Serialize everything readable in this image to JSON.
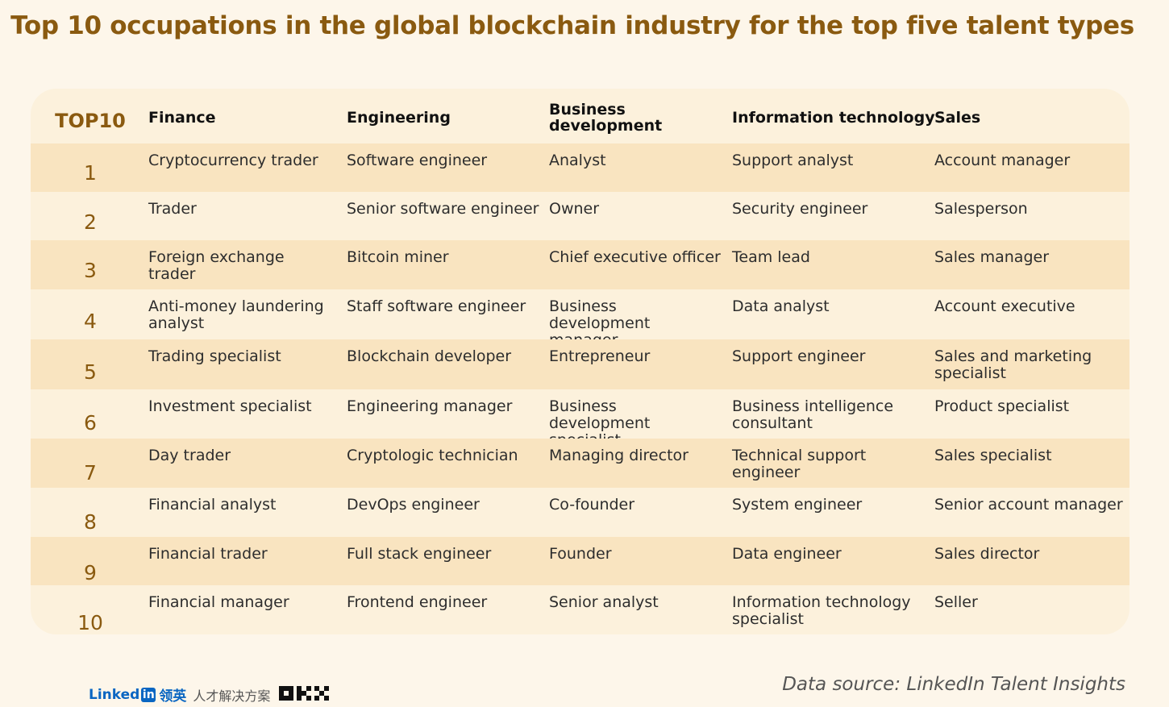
{
  "title": "Top 10 occupations in the global blockchain industry for the top five talent types",
  "table": {
    "corner_label": "TOP10",
    "columns": [
      "Finance",
      "Engineering",
      "Business development",
      "Information technology",
      "Sales"
    ],
    "rows": [
      {
        "rank": "1",
        "cells": [
          "Cryptocurrency trader",
          "Software engineer",
          "Analyst",
          "Support analyst",
          "Account manager"
        ]
      },
      {
        "rank": "2",
        "cells": [
          "Trader",
          "Senior software engineer",
          "Owner",
          "Security engineer",
          "Salesperson"
        ]
      },
      {
        "rank": "3",
        "cells": [
          "Foreign exchange trader",
          "Bitcoin miner",
          "Chief executive officer",
          "Team lead",
          "Sales manager"
        ]
      },
      {
        "rank": "4",
        "cells": [
          "Anti-money laundering analyst",
          "Staff software engineer",
          "Business development manager",
          "Data analyst",
          "Account executive"
        ]
      },
      {
        "rank": "5",
        "cells": [
          "Trading specialist",
          "Blockchain developer",
          "Entrepreneur",
          "Support engineer",
          "Sales and marketing specialist"
        ]
      },
      {
        "rank": "6",
        "cells": [
          "Investment specialist",
          "Engineering manager",
          "Business development specialist",
          "Business intelligence consultant",
          "Product specialist"
        ]
      },
      {
        "rank": "7",
        "cells": [
          "Day trader",
          "Cryptologic technician",
          "Managing director",
          "Technical support engineer",
          "Sales specialist"
        ]
      },
      {
        "rank": "8",
        "cells": [
          "Financial analyst",
          "DevOps engineer",
          "Co-founder",
          "System engineer",
          "Senior account manager"
        ]
      },
      {
        "rank": "9",
        "cells": [
          "Financial trader",
          "Full stack engineer",
          "Founder",
          "Data engineer",
          "Sales director"
        ]
      },
      {
        "rank": "10",
        "cells": [
          "Financial manager",
          "Frontend engineer",
          "Senior analyst",
          "Information technology specialist",
          "Seller"
        ]
      }
    ]
  },
  "footer": {
    "source": "Data source: LinkedIn Talent Insights",
    "linkedin_word": "Linked",
    "linkedin_in": "in",
    "linkedin_cn": "领英",
    "linkedin_sub": "人才解决方案",
    "okx_logo": "OKX"
  },
  "colors": {
    "background": "#fdf6ea",
    "row_light": "#fcf1dc",
    "row_dark": "#f9e4c0",
    "accent": "#8a5a10",
    "linkedin": "#0a66c2"
  }
}
